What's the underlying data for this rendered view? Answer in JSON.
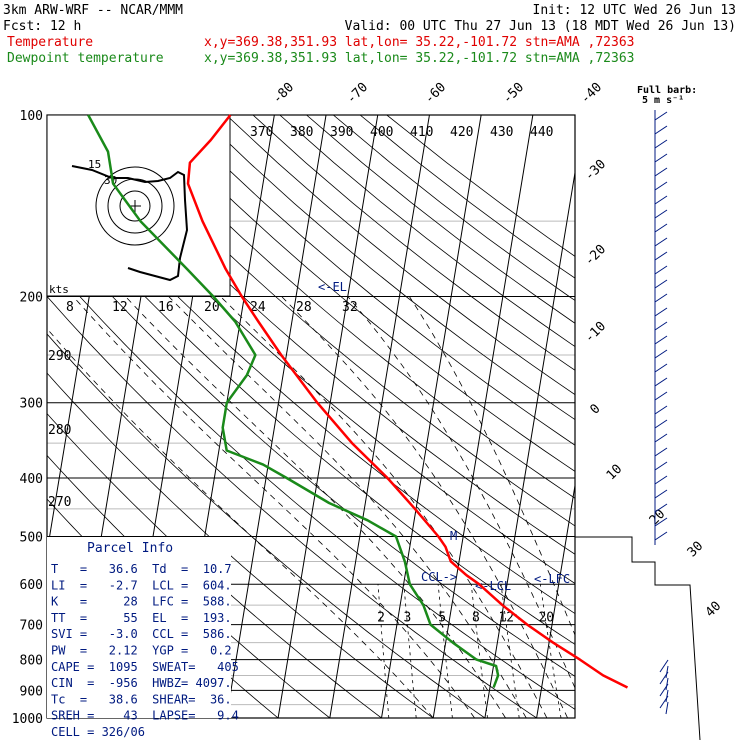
{
  "header": {
    "left1": "3km ARW-WRF -- NCAR/MMM",
    "right1": "Init: 12 UTC Wed 26 Jun 13",
    "left2": "Fcst:    12 h",
    "right2": "Valid: 00 UTC Thu 27 Jun 13 (18 MDT Wed 26 Jun 13)",
    "temp_label": "Temperature",
    "dew_label": "Dewpoint temperature",
    "temp_info": "x,y=369.38,351.93   lat,lon= 35.22,-101.72  stn=AMA ,72363",
    "dew_info": "x,y=369.38,351.93   lat,lon= 35.22,-101.72  stn=AMA ,72363",
    "barb_key_1": "Full barb:",
    "barb_key_2": "5 m s⁻¹"
  },
  "colors": {
    "temperature": "#ff0000",
    "dewpoint": "#1a8a1a",
    "info_text": "#001a80",
    "wind": "#001a80"
  },
  "chart_data": {
    "type": "line",
    "subtype": "skew-T log-P",
    "y_scale": "log",
    "ylim": [
      1000,
      100
    ],
    "pressure_ticks": [
      100,
      200,
      300,
      400,
      500,
      600,
      700,
      800,
      900,
      1000
    ],
    "isotherm_labels": [
      -80,
      -70,
      -60,
      -50,
      -40,
      -30,
      -20,
      -10,
      0,
      10,
      20,
      30,
      40
    ],
    "theta_labels_upper": [
      370,
      380,
      390,
      400,
      410,
      420,
      430,
      440
    ],
    "mixing_ratio_labels": [
      8,
      12,
      16,
      20,
      24,
      28,
      32
    ],
    "mixing_ratio_labels_lower": [
      2,
      3,
      5,
      8,
      12,
      20
    ],
    "theta_labels_left": [
      290,
      280,
      270
    ],
    "annotation_lfc_upper": "<-EL",
    "annotation_m": "M",
    "annotation_ccl": "CCL->",
    "annotation_lcl": "<-LCL",
    "annotation_lfc": "<-LFC",
    "hodograph_unit": "kts",
    "hodograph_rings": [
      "15",
      "30"
    ],
    "series": [
      {
        "name": "Temperature",
        "p": [
          890,
          850,
          800,
          750,
          700,
          650,
          600,
          580,
          550,
          520,
          500,
          450,
          400,
          350,
          300,
          250,
          220,
          200,
          180,
          150,
          130,
          120,
          110,
          100
        ],
        "t": [
          36.6,
          31.5,
          26.5,
          20.8,
          15.2,
          9.8,
          4.6,
          1.9,
          -1.6,
          -3.1,
          -4.8,
          -10.2,
          -16.5,
          -24.5,
          -32.5,
          -41.0,
          -46.5,
          -50.5,
          -54.5,
          -60.5,
          -64.5,
          -64.8,
          -61.5,
          -58.5
        ]
      },
      {
        "name": "Dewpoint",
        "p": [
          890,
          850,
          820,
          800,
          750,
          700,
          650,
          600,
          550,
          500,
          470,
          440,
          400,
          380,
          360,
          330,
          300,
          270,
          250,
          220,
          200,
          180,
          150,
          130,
          115,
          100
        ],
        "t": [
          10.7,
          11.2,
          10.5,
          6.5,
          1.4,
          -3.5,
          -5.5,
          -8.8,
          -10.5,
          -13.0,
          -19.0,
          -27.0,
          -36.0,
          -41.0,
          -48.5,
          -50.0,
          -50.0,
          -47.0,
          -46.0,
          -51.0,
          -56.0,
          -62.0,
          -72.5,
          -79.0,
          -81.0,
          -86.0
        ]
      }
    ],
    "wind_barbs_present": true
  },
  "parcel_info": {
    "title": "Parcel Info",
    "rows": [
      "T   =   36.6  Td  =  10.7",
      "LI  =   -2.7  LCL =  604.",
      "K   =     28  LFC =  588.",
      "TT  =     55  EL  =  193.",
      "SVI =   -3.0  CCL =  586.",
      "PW  =   2.12  YGP =   0.2",
      "CAPE =  1095  SWEAT=   405",
      "CIN  =  -956  HWBZ= 4097.",
      "Tc  =   38.6  SHEAR=  36.",
      "SREH =    43  LAPSE=   9.4",
      "CELL = 326/06"
    ]
  }
}
